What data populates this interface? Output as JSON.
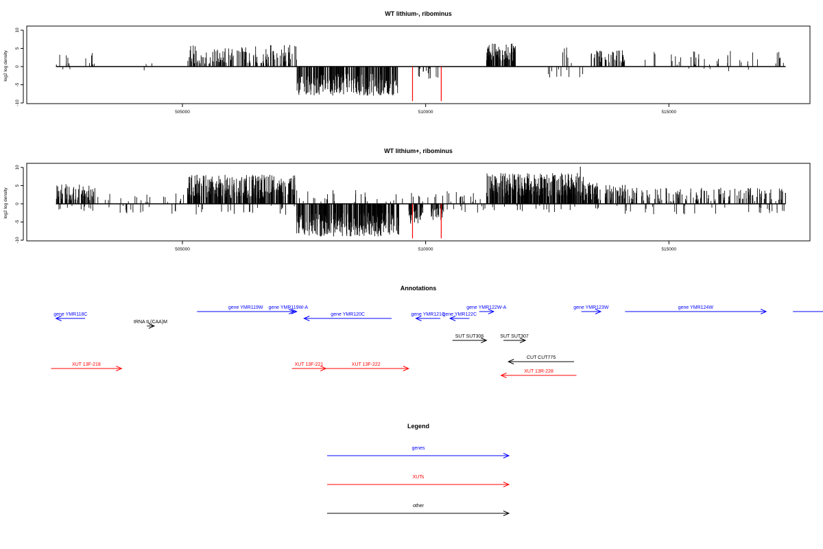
{
  "chart_data": [
    {
      "type": "bar",
      "title": "WT lithium-, ribominus",
      "ylabel": "log2 log density",
      "xlim": [
        501800,
        517900
      ],
      "ylim": [
        -10,
        10
      ],
      "x_ticks": [
        505000,
        510000,
        515000
      ],
      "x_tick_labels": [
        "505000",
        "510000",
        "515000"
      ],
      "y_ticks": [
        10,
        5,
        0,
        -5,
        -10
      ],
      "y_tick_labels": [
        "10",
        "5",
        "0",
        "-5",
        "-10"
      ],
      "baseline": 0,
      "xrange": [
        502400,
        517400
      ],
      "density_segments": [
        {
          "x0": 502400,
          "x1": 503200,
          "min": 0.5,
          "max": 4.0,
          "n": 14
        },
        {
          "x0": 504100,
          "x1": 504400,
          "min": 0.5,
          "max": 2.0,
          "n": 2
        },
        {
          "x0": 505100,
          "x1": 507350,
          "min": 0.8,
          "max": 6.0,
          "n": 140
        },
        {
          "x0": 511250,
          "x1": 511850,
          "min": 1.5,
          "max": 6.5,
          "n": 90
        },
        {
          "x0": 512800,
          "x1": 513100,
          "min": 0.5,
          "max": 5.5,
          "n": 6
        },
        {
          "x0": 513400,
          "x1": 514100,
          "min": 0.8,
          "max": 4.8,
          "n": 45
        },
        {
          "x0": 514500,
          "x1": 517400,
          "min": 0.5,
          "max": 4.5,
          "n": 40
        }
      ],
      "neg_segments": [
        {
          "x0": 502400,
          "x1": 502700,
          "min": 0.5,
          "max": 2.5,
          "n": 2
        },
        {
          "x0": 504100,
          "x1": 504300,
          "min": 0.5,
          "max": 1.5,
          "n": 1
        },
        {
          "x0": 507350,
          "x1": 509450,
          "min": 2.0,
          "max": 8.0,
          "n": 260
        },
        {
          "x0": 509700,
          "x1": 510300,
          "min": 0.5,
          "max": 3.5,
          "n": 12
        },
        {
          "x0": 512500,
          "x1": 513300,
          "min": 0.5,
          "max": 3.0,
          "n": 10
        },
        {
          "x0": 515300,
          "x1": 517200,
          "min": 0.5,
          "max": 1.5,
          "n": 5
        }
      ],
      "red_marks": [
        {
          "x": 509730,
          "value": -9.5
        },
        {
          "x": 510320,
          "value": -9.5
        }
      ]
    },
    {
      "type": "bar",
      "title": "WT lithium+, ribominus",
      "ylabel": "log2 log density",
      "xlim": [
        501800,
        517900
      ],
      "ylim": [
        -10,
        10
      ],
      "x_ticks": [
        505000,
        510000,
        515000
      ],
      "x_tick_labels": [
        "505000",
        "510000",
        "515000"
      ],
      "y_ticks": [
        10,
        5,
        0,
        -5,
        -10
      ],
      "y_tick_labels": [
        "10",
        "5",
        "0",
        "-5",
        "-10"
      ],
      "baseline": 0,
      "xrange": [
        502400,
        517400
      ],
      "density_segments": [
        {
          "x0": 502400,
          "x1": 503200,
          "min": 1.0,
          "max": 5.5,
          "n": 80
        },
        {
          "x0": 503200,
          "x1": 505100,
          "min": 0.5,
          "max": 3.0,
          "n": 20
        },
        {
          "x0": 505100,
          "x1": 507350,
          "min": 1.5,
          "max": 8.0,
          "n": 320
        },
        {
          "x0": 507350,
          "x1": 509450,
          "min": 0.5,
          "max": 4.0,
          "n": 25
        },
        {
          "x0": 509450,
          "x1": 511250,
          "min": 0.5,
          "max": 3.5,
          "n": 25
        },
        {
          "x0": 511250,
          "x1": 513250,
          "min": 2.0,
          "max": 8.5,
          "n": 320
        },
        {
          "x0": 513250,
          "x1": 514100,
          "min": 1.0,
          "max": 6.0,
          "n": 80
        },
        {
          "x0": 514100,
          "x1": 517400,
          "min": 0.5,
          "max": 4.5,
          "n": 140
        }
      ],
      "neg_segments": [
        {
          "x0": 502400,
          "x1": 505100,
          "min": 0.5,
          "max": 3.0,
          "n": 25
        },
        {
          "x0": 505100,
          "x1": 507350,
          "min": 0.5,
          "max": 3.0,
          "n": 20
        },
        {
          "x0": 507350,
          "x1": 509450,
          "min": 2.5,
          "max": 9.0,
          "n": 320
        },
        {
          "x0": 509650,
          "x1": 509950,
          "min": 1.0,
          "max": 5.5,
          "n": 40
        },
        {
          "x0": 510100,
          "x1": 510350,
          "min": 1.0,
          "max": 4.5,
          "n": 30
        },
        {
          "x0": 510350,
          "x1": 511250,
          "min": 0.5,
          "max": 2.5,
          "n": 10
        },
        {
          "x0": 511250,
          "x1": 514100,
          "min": 0.5,
          "max": 2.5,
          "n": 20
        },
        {
          "x0": 514100,
          "x1": 517400,
          "min": 0.5,
          "max": 3.0,
          "n": 30
        }
      ],
      "red_marks": [
        {
          "x": 509730,
          "value": -9.5
        },
        {
          "x": 510320,
          "value": -9.5
        }
      ],
      "extra_bars": [
        {
          "x": 513180,
          "value": 10.2
        }
      ]
    }
  ],
  "annotations": {
    "title": "Annotations",
    "items": [
      {
        "label": "gene YMR118C",
        "color": "#0000ff",
        "dir": "left",
        "row": 1,
        "x0": 502400,
        "x1": 503000
      },
      {
        "label": "tRNA tL(CAA)M",
        "color": "#000000",
        "dir": "right",
        "row": 2,
        "x0": 504270,
        "x1": 504420
      },
      {
        "label": "gene YMR119W",
        "color": "#0000ff",
        "dir": "right",
        "row": 0,
        "x0": 505300,
        "x1": 507300
      },
      {
        "label": "gene YMR119W-A",
        "color": "#0000ff",
        "dir": "right",
        "row": 0,
        "x0": 507000,
        "x1": 507350
      },
      {
        "label": "gene YMR120C",
        "color": "#0000ff",
        "dir": "left",
        "row": 1,
        "x0": 507500,
        "x1": 509300
      },
      {
        "label": "gene YMR121C",
        "color": "#0000ff",
        "dir": "left",
        "row": 1,
        "x0": 509800,
        "x1": 510300
      },
      {
        "label": "gene YMR122C",
        "color": "#0000ff",
        "dir": "left",
        "row": 1,
        "x0": 510500,
        "x1": 510900
      },
      {
        "label": "gene YMR122W-A",
        "color": "#0000ff",
        "dir": "right",
        "row": 0,
        "x0": 511100,
        "x1": 511400
      },
      {
        "label": "gene YMR123W",
        "color": "#0000ff",
        "dir": "right",
        "row": 0,
        "x0": 513200,
        "x1": 513600
      },
      {
        "label": "gene YMR124W",
        "color": "#0000ff",
        "dir": "right",
        "row": 0,
        "x0": 514100,
        "x1": 517000
      },
      {
        "label": "SUT SUT306",
        "color": "#000000",
        "dir": "right",
        "row": 4,
        "x0": 510550,
        "x1": 511250
      },
      {
        "label": "SUT SUT307",
        "color": "#000000",
        "dir": "right",
        "row": 4,
        "x0": 511600,
        "x1": 512050
      },
      {
        "label": "CUT CUT775",
        "color": "#000000",
        "dir": "left",
        "row": 5,
        "x0": 511700,
        "x1": 513050
      },
      {
        "label": "XUT 13F-218",
        "color": "#ff0000",
        "dir": "right",
        "row": 6,
        "x0": 502300,
        "x1": 503750
      },
      {
        "label": "XUT 13F-221",
        "color": "#ff0000",
        "dir": "right",
        "row": 6,
        "x0": 507250,
        "x1": 507950
      },
      {
        "label": "XUT 13F-222",
        "color": "#ff0000",
        "dir": "right",
        "row": 6,
        "x0": 507900,
        "x1": 509650
      },
      {
        "label": "XUT 13R-228",
        "color": "#ff0000",
        "dir": "left",
        "row": 7,
        "x0": 511550,
        "x1": 513100
      }
    ],
    "offscreen_line": {
      "color": "#0000ff",
      "x0": 517550,
      "x1": 518200,
      "row": 0
    }
  },
  "legend": {
    "title": "Legend",
    "items": [
      {
        "label": "genes",
        "color": "#0000ff"
      },
      {
        "label": "XUTs",
        "color": "#ff0000"
      },
      {
        "label": "other",
        "color": "#000000"
      }
    ]
  }
}
